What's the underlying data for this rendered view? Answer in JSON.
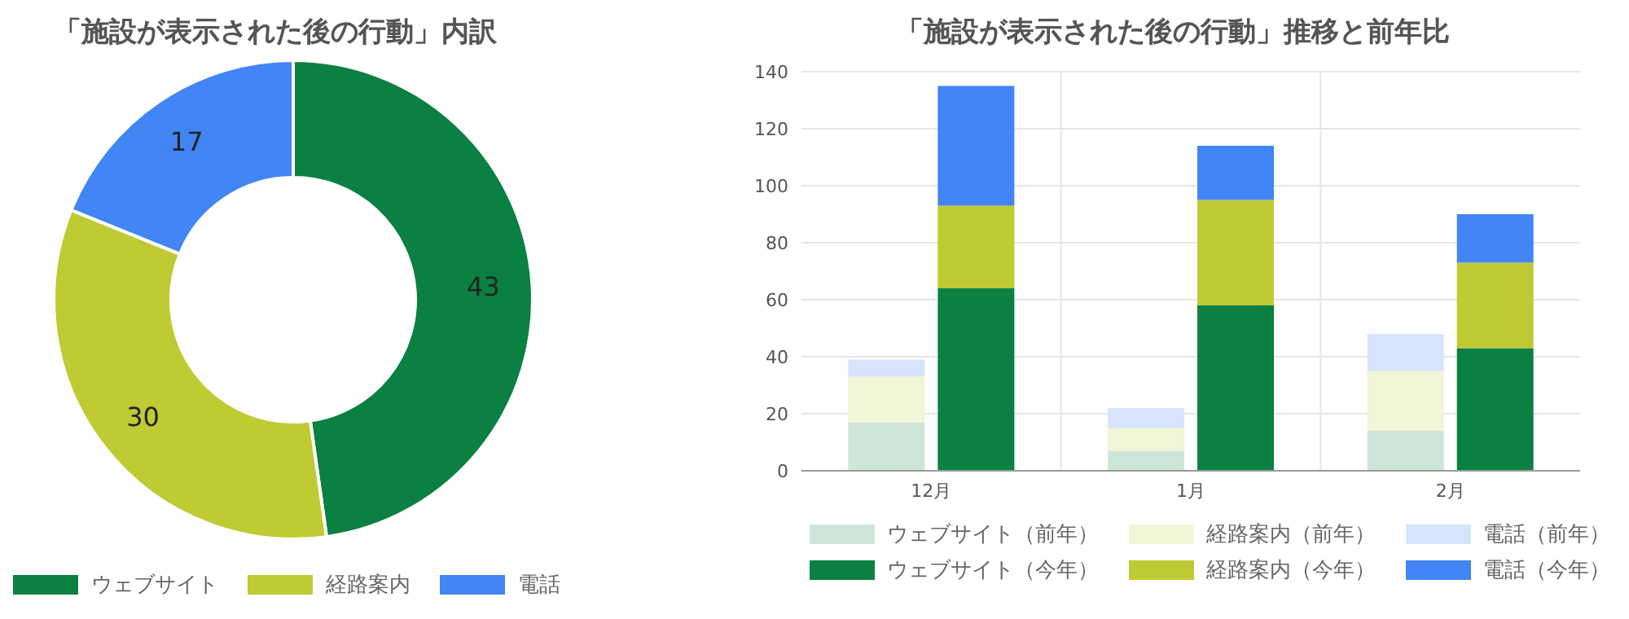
{
  "chart_data": [
    {
      "type": "donut",
      "title": "「施設が表示された後の行動」内訳",
      "categories": [
        "ウェブサイト",
        "経路案内",
        "電話"
      ],
      "values": [
        43,
        30,
        17
      ],
      "colors": [
        "#0b8043",
        "#c0ca33",
        "#4285f4"
      ],
      "data_labels": true,
      "legend": "bottom left"
    },
    {
      "type": "bar",
      "title": "「施設が表示された後の行動」推移と前年比",
      "categories": [
        "12月",
        "1月",
        "2月"
      ],
      "ylim": [
        0,
        140
      ],
      "yticks": [
        0,
        20,
        40,
        60,
        80,
        100,
        120,
        140
      ],
      "grid": true,
      "legend": "bottom",
      "series": [
        {
          "name": "ウェブサイト（前年）",
          "color": "#cee6da",
          "base": [
            0,
            0,
            0
          ],
          "values": [
            17,
            7,
            14
          ]
        },
        {
          "name": "経路案内（前年）",
          "color": "#f2f5d6",
          "base": [
            17,
            7,
            14
          ],
          "values": [
            16,
            8,
            21
          ]
        },
        {
          "name": "電話（前年）",
          "color": "#d6e5fc",
          "base": [
            33,
            15,
            35
          ],
          "values": [
            6,
            7,
            13
          ]
        },
        {
          "name": "ウェブサイト（今年）",
          "color": "#0b8043",
          "base": [
            0,
            0,
            0
          ],
          "values": [
            64,
            58,
            43
          ]
        },
        {
          "name": "経路案内（今年）",
          "color": "#c0ca33",
          "base": [
            64,
            58,
            43
          ],
          "values": [
            29,
            37,
            30
          ]
        },
        {
          "name": "電話（今年）",
          "color": "#4285f4",
          "base": [
            93,
            95,
            73
          ],
          "values": [
            42,
            19,
            17
          ]
        }
      ]
    }
  ]
}
